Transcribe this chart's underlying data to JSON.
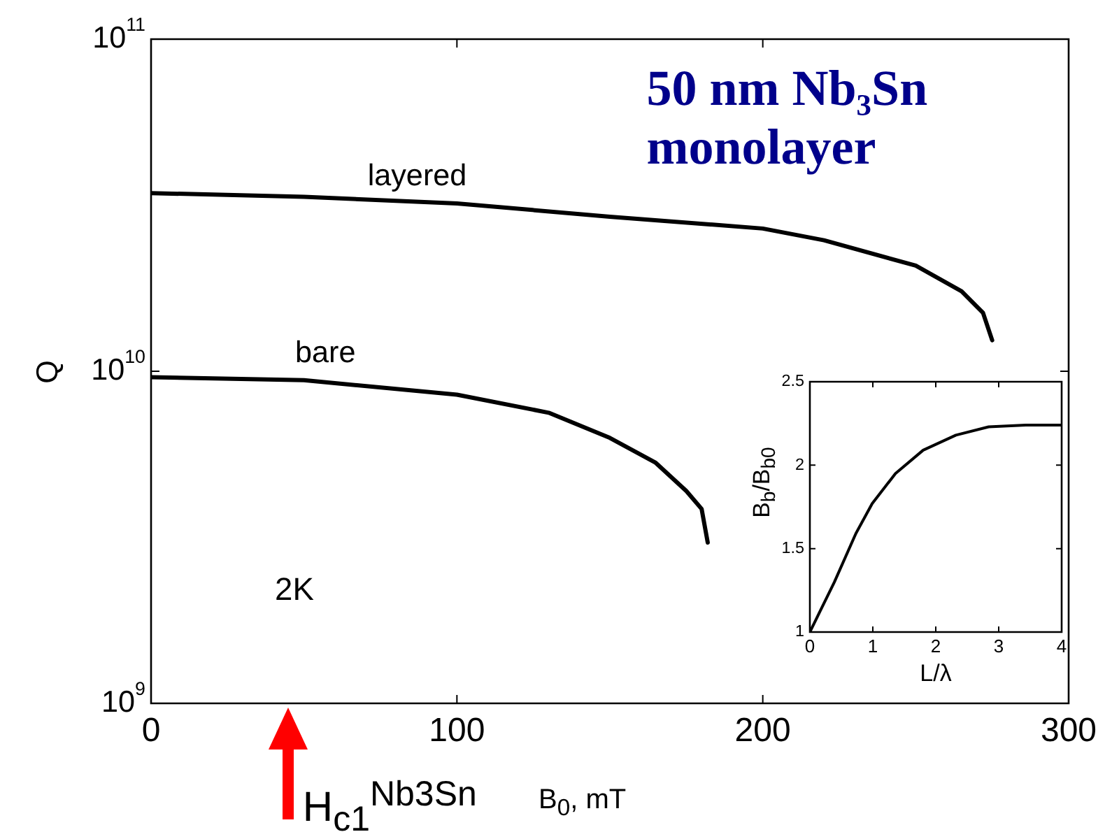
{
  "chart_data": [
    {
      "type": "line",
      "title": "50 nm Nb₃Sn monolayer",
      "xlabel": "B$_{0}$, mT",
      "ylabel": "Q",
      "log": "y",
      "xlim": [
        0,
        300
      ],
      "xticks": [
        0,
        100,
        200,
        300
      ],
      "ylim": [
        1000000000.0,
        100000000000.0
      ],
      "yticks": [
        {
          "value": 1000000000.0,
          "label": "10$^{9}$"
        },
        {
          "value": 10000000000.0,
          "label": "10$^{10}$"
        },
        {
          "value": 100000000000.0,
          "label": "10$^{11}$"
        }
      ],
      "grid": false,
      "legend": false,
      "marker": "none",
      "series": [
        {
          "name": "layered",
          "color": "#000000",
          "x": [
            0,
            50,
            100,
            150,
            200,
            220,
            250,
            265,
            272,
            275
          ],
          "values": [
            34400000000.0,
            33500000000.0,
            32000000000.0,
            29200000000.0,
            26900000000.0,
            24800000000.0,
            20800000000.0,
            17400000000.0,
            15000000000.0,
            12400000000.0
          ]
        },
        {
          "name": "bare",
          "color": "#000000",
          "x": [
            0,
            50,
            100,
            130,
            150,
            165,
            175,
            180,
            182
          ],
          "values": [
            9600000000.0,
            9400000000.0,
            8500000000.0,
            7500000000.0,
            6300000000.0,
            5300000000.0,
            4360000000.0,
            3850000000.0,
            3050000000.0
          ]
        }
      ],
      "annotations": [
        "2K",
        "H$_{c1}$$^{Nb3Sn}$"
      ]
    },
    {
      "type": "line",
      "xlabel": "L/λ",
      "ylabel": "B$_{b}$/B$_{b0}$",
      "xlim": [
        0,
        4
      ],
      "xticks": [
        0,
        1,
        2,
        3,
        4
      ],
      "ylim": [
        1,
        2.5
      ],
      "yticks": [
        1,
        1.5,
        2,
        2.5
      ],
      "grid": false,
      "legend": false,
      "marker": "none",
      "series": [
        {
          "color": "#000000",
          "x": [
            0,
            0.13,
            0.39,
            0.73,
            0.99,
            1.36,
            1.8,
            2.32,
            2.84,
            3.43,
            4
          ],
          "values": [
            1,
            1.1,
            1.3,
            1.59,
            1.77,
            1.95,
            2.09,
            2.18,
            2.23,
            2.24,
            2.24
          ]
        }
      ]
    }
  ]
}
